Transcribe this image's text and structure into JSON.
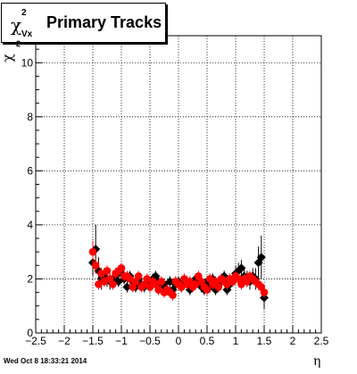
{
  "title": {
    "symbol": "χ",
    "superscript": "2",
    "subscript": "Vx",
    "text": "Primary Tracks"
  },
  "footer_timestamp": "Wed Oct  8 18:33:21 2014",
  "chart_data": {
    "type": "scatter",
    "xlabel": "η",
    "ylabel_symbol": "χ",
    "ylabel_superscript": "2",
    "xlim": [
      -2.5,
      2.5
    ],
    "ylim": [
      0,
      11
    ],
    "x_ticks": [
      "−2.5",
      "−2",
      "−1.5",
      "−1",
      "−0.5",
      "0",
      "0.5",
      "1",
      "1.5",
      "2",
      "2.5"
    ],
    "x_tick_values": [
      -2.5,
      -2,
      -1.5,
      -1,
      -0.5,
      0,
      0.5,
      1,
      1.5,
      2,
      2.5
    ],
    "y_ticks": [
      "0",
      "2",
      "4",
      "6",
      "8",
      "10"
    ],
    "y_tick_values": [
      0,
      2,
      4,
      6,
      8,
      10
    ],
    "grid": true,
    "series": [
      {
        "color": "#000000",
        "marker": "diamond",
        "x": [
          -1.5,
          -1.45,
          -1.4,
          -1.35,
          -1.3,
          -1.25,
          -1.2,
          -1.15,
          -1.1,
          -1.05,
          -1.0,
          -0.95,
          -0.9,
          -0.85,
          -0.8,
          -0.75,
          -0.7,
          -0.65,
          -0.6,
          -0.55,
          -0.5,
          -0.45,
          -0.4,
          -0.35,
          -0.3,
          -0.25,
          -0.2,
          -0.15,
          -0.1,
          -0.05,
          0.0,
          0.05,
          0.1,
          0.15,
          0.2,
          0.25,
          0.3,
          0.35,
          0.4,
          0.45,
          0.5,
          0.55,
          0.6,
          0.65,
          0.7,
          0.75,
          0.8,
          0.85,
          0.9,
          0.95,
          1.0,
          1.05,
          1.1,
          1.15,
          1.2,
          1.25,
          1.3,
          1.35,
          1.4,
          1.45,
          1.5
        ],
        "y": [
          2.6,
          3.1,
          2.3,
          2.0,
          2.1,
          2.0,
          1.9,
          2.0,
          2.1,
          1.9,
          2.2,
          2.0,
          1.7,
          2.1,
          1.9,
          1.7,
          2.0,
          1.8,
          1.7,
          1.9,
          1.8,
          2.0,
          2.1,
          1.9,
          1.7,
          1.8,
          1.6,
          1.9,
          1.6,
          1.8,
          1.9,
          1.7,
          1.8,
          1.9,
          1.6,
          1.8,
          2.0,
          1.9,
          1.7,
          1.6,
          1.9,
          1.7,
          2.0,
          1.6,
          1.8,
          1.9,
          2.1,
          1.6,
          1.8,
          2.0,
          2.2,
          2.3,
          2.4,
          2.1,
          2.0,
          1.9,
          2.1,
          2.0,
          2.6,
          2.8,
          1.3
        ],
        "err": [
          0.5,
          0.9,
          0.5,
          0.4,
          0.3,
          0.3,
          0.3,
          0.3,
          0.3,
          0.2,
          0.3,
          0.2,
          0.2,
          0.2,
          0.2,
          0.2,
          0.2,
          0.2,
          0.2,
          0.2,
          0.2,
          0.2,
          0.2,
          0.2,
          0.2,
          0.2,
          0.2,
          0.2,
          0.2,
          0.2,
          0.2,
          0.2,
          0.2,
          0.2,
          0.2,
          0.2,
          0.2,
          0.2,
          0.2,
          0.2,
          0.2,
          0.2,
          0.2,
          0.2,
          0.2,
          0.2,
          0.2,
          0.2,
          0.2,
          0.2,
          0.3,
          0.3,
          0.3,
          0.3,
          0.3,
          0.3,
          0.3,
          0.4,
          0.6,
          0.8,
          0.4
        ]
      },
      {
        "color": "#ff0000",
        "marker": "circle",
        "x": [
          -1.5,
          -1.45,
          -1.4,
          -1.35,
          -1.3,
          -1.25,
          -1.2,
          -1.15,
          -1.1,
          -1.05,
          -1.0,
          -0.95,
          -0.9,
          -0.85,
          -0.8,
          -0.75,
          -0.7,
          -0.65,
          -0.6,
          -0.55,
          -0.5,
          -0.45,
          -0.4,
          -0.35,
          -0.3,
          -0.25,
          -0.2,
          -0.15,
          -0.1,
          -0.05,
          0.0,
          0.05,
          0.1,
          0.15,
          0.2,
          0.25,
          0.3,
          0.35,
          0.4,
          0.45,
          0.5,
          0.55,
          0.6,
          0.65,
          0.7,
          0.75,
          0.8,
          0.85,
          0.9,
          0.95,
          1.0,
          1.05,
          1.1,
          1.15,
          1.2,
          1.25,
          1.3,
          1.35,
          1.4,
          1.45,
          1.5
        ],
        "y": [
          3.0,
          2.5,
          1.8,
          2.2,
          1.9,
          2.3,
          2.0,
          1.8,
          2.2,
          2.3,
          2.4,
          2.1,
          2.1,
          2.0,
          1.7,
          1.9,
          2.1,
          1.7,
          1.8,
          2.0,
          1.7,
          1.9,
          1.8,
          1.6,
          1.9,
          1.5,
          1.6,
          1.5,
          1.4,
          1.9,
          1.8,
          1.7,
          2.0,
          1.8,
          1.9,
          1.7,
          1.8,
          2.1,
          1.9,
          1.7,
          1.6,
          2.0,
          1.8,
          1.9,
          1.7,
          2.0,
          1.9,
          1.8,
          2.0,
          1.9,
          2.1,
          2.0,
          1.8,
          2.0,
          1.9,
          2.1,
          2.0,
          1.9,
          1.8,
          1.7,
          1.5
        ],
        "err": [
          0.4,
          0.3,
          0.2,
          0.2,
          0.2,
          0.2,
          0.2,
          0.2,
          0.2,
          0.2,
          0.2,
          0.2,
          0.2,
          0.2,
          0.2,
          0.2,
          0.2,
          0.2,
          0.2,
          0.2,
          0.2,
          0.2,
          0.2,
          0.2,
          0.2,
          0.2,
          0.2,
          0.2,
          0.2,
          0.2,
          0.2,
          0.2,
          0.2,
          0.2,
          0.2,
          0.2,
          0.2,
          0.2,
          0.2,
          0.2,
          0.2,
          0.2,
          0.2,
          0.2,
          0.2,
          0.2,
          0.2,
          0.2,
          0.2,
          0.2,
          0.2,
          0.2,
          0.2,
          0.2,
          0.2,
          0.2,
          0.2,
          0.2,
          0.2,
          0.2,
          0.2
        ]
      }
    ]
  }
}
